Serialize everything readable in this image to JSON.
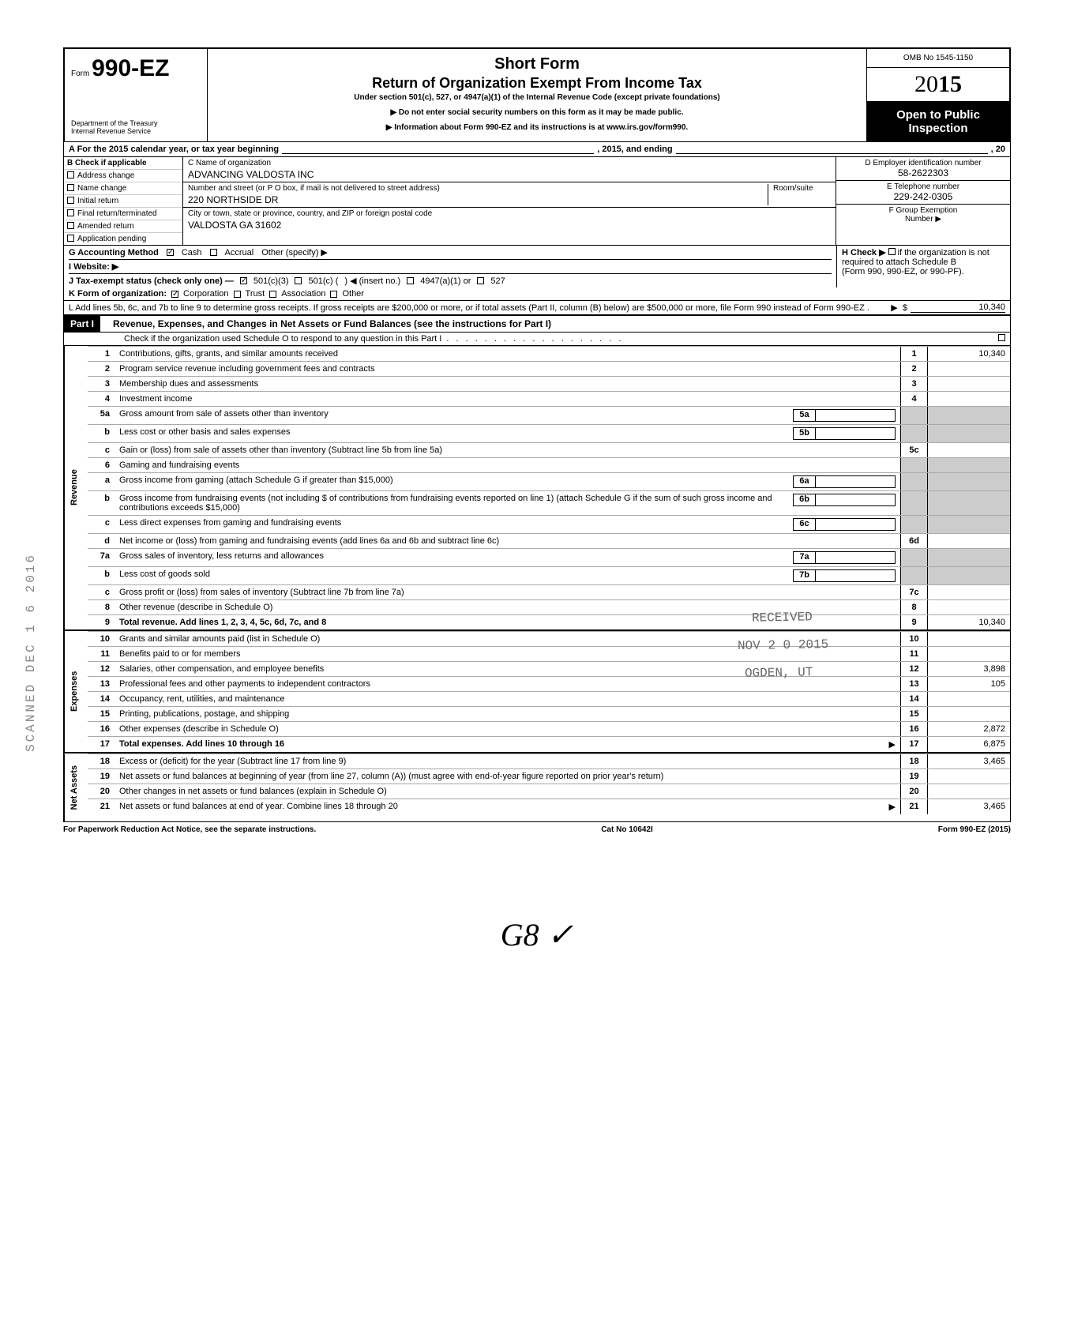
{
  "header": {
    "form_label": "Form",
    "form_number": "990-EZ",
    "dept1": "Department of the Treasury",
    "dept2": "Internal Revenue Service",
    "title1": "Short Form",
    "title2": "Return of Organization Exempt From Income Tax",
    "under": "Under section 501(c), 527, or 4947(a)(1) of the Internal Revenue Code (except private foundations)",
    "note1": "▶ Do not enter social security numbers on this form as it may be made public.",
    "note2": "▶ Information about Form 990-EZ and its instructions is at www.irs.gov/form990.",
    "omb": "OMB No  1545-1150",
    "year_prefix": "20",
    "year_bold": "15",
    "open1": "Open to Public",
    "open2": "Inspection"
  },
  "rowA": {
    "label": "A  For the 2015 calendar year, or tax year beginning",
    "mid": ", 2015, and ending",
    "end": ", 20"
  },
  "sectionB": {
    "hdr": "B  Check if applicable",
    "opts": [
      "Address change",
      "Name change",
      "Initial return",
      "Final return/terminated",
      "Amended return",
      "Application pending"
    ]
  },
  "sectionC": {
    "c_label": "C  Name of organization",
    "c_val": "ADVANCING VALDOSTA INC",
    "street_label": "Number and street (or P O  box, if mail is not delivered to street address)",
    "room_label": "Room/suite",
    "street_val": "220 NORTHSIDE DR",
    "city_label": "City or town, state or province, country, and ZIP or foreign postal code",
    "city_val": "VALDOSTA GA 31602"
  },
  "sectionDEF": {
    "d_label": "D Employer identification number",
    "d_val": "58-2622303",
    "e_label": "E Telephone number",
    "e_val": "229-242-0305",
    "f_label": "F  Group Exemption",
    "f_label2": "Number ▶"
  },
  "rowG": {
    "g": "G  Accounting Method",
    "cash": "Cash",
    "accrual": "Accrual",
    "other": "Other (specify) ▶",
    "h1": "H  Check ▶",
    "h2": "if the organization is not",
    "h3": "required to attach Schedule B",
    "h4": "(Form 990, 990-EZ, or 990-PF)."
  },
  "rowI": {
    "label": "I   Website: ▶"
  },
  "rowJ": {
    "label": "J  Tax-exempt status (check only one) —",
    "a": "501(c)(3)",
    "b": "501(c) (",
    "b2": ")  ◀ (insert no.)",
    "c": "4947(a)(1) or",
    "d": "527"
  },
  "rowK": {
    "label": "K  Form of organization:",
    "a": "Corporation",
    "b": "Trust",
    "c": "Association",
    "d": "Other"
  },
  "rowL": {
    "text": "L  Add lines 5b, 6c, and 7b to line 9 to determine gross receipts. If gross receipts are $200,000 or more, or if total assets (Part II, column (B) below) are $500,000 or more, file Form 990 instead of Form 990-EZ .",
    "amt": "10,340"
  },
  "part1": {
    "hdr": "Part I",
    "title": "Revenue, Expenses, and Changes in Net Assets or Fund Balances (see the instructions for Part I)",
    "check": "Check if the organization used Schedule O to respond to any question in this Part I"
  },
  "sections": {
    "revenue": "Revenue",
    "expenses": "Expenses",
    "netassets": "Net Assets"
  },
  "lines": [
    {
      "n": "1",
      "d": "Contributions, gifts, grants, and similar amounts received",
      "r": "1",
      "a": "10,340"
    },
    {
      "n": "2",
      "d": "Program service revenue including government fees and contracts",
      "r": "2",
      "a": ""
    },
    {
      "n": "3",
      "d": "Membership dues and assessments",
      "r": "3",
      "a": ""
    },
    {
      "n": "4",
      "d": "Investment income",
      "r": "4",
      "a": ""
    },
    {
      "n": "5a",
      "d": "Gross amount from sale of assets other than inventory",
      "inner": "5a"
    },
    {
      "n": "b",
      "d": "Less  cost or other basis and sales expenses",
      "inner": "5b"
    },
    {
      "n": "c",
      "d": "Gain or (loss) from sale of assets other than inventory (Subtract line 5b from line 5a)",
      "r": "5c",
      "a": ""
    },
    {
      "n": "6",
      "d": "Gaming and fundraising events"
    },
    {
      "n": "a",
      "d": "Gross income from gaming (attach Schedule G if greater than $15,000)",
      "inner": "6a"
    },
    {
      "n": "b",
      "d": "Gross income from fundraising events (not including  $                    of contributions from fundraising events reported on line 1) (attach Schedule G if the sum of such gross income and contributions exceeds $15,000)",
      "inner": "6b"
    },
    {
      "n": "c",
      "d": "Less  direct expenses from gaming and fundraising events",
      "inner": "6c"
    },
    {
      "n": "d",
      "d": "Net income or (loss) from gaming and fundraising events (add lines 6a and 6b and subtract line 6c)",
      "r": "6d",
      "a": ""
    },
    {
      "n": "7a",
      "d": "Gross sales of inventory, less returns and allowances",
      "inner": "7a"
    },
    {
      "n": "b",
      "d": "Less  cost of goods sold",
      "inner": "7b"
    },
    {
      "n": "c",
      "d": "Gross profit or (loss) from sales of inventory (Subtract line 7b from line 7a)",
      "r": "7c",
      "a": ""
    },
    {
      "n": "8",
      "d": "Other revenue (describe in Schedule O)",
      "r": "8",
      "a": ""
    },
    {
      "n": "9",
      "d": "Total revenue. Add lines 1, 2, 3, 4, 5c, 6d, 7c, and 8",
      "r": "9",
      "a": "10,340",
      "bold": true
    },
    {
      "n": "10",
      "d": "Grants and similar amounts paid (list in Schedule O)",
      "r": "10",
      "a": ""
    },
    {
      "n": "11",
      "d": "Benefits paid to or for members",
      "r": "11",
      "a": ""
    },
    {
      "n": "12",
      "d": "Salaries, other compensation, and employee benefits",
      "r": "12",
      "a": "3,898"
    },
    {
      "n": "13",
      "d": "Professional fees and other payments to independent contractors",
      "r": "13",
      "a": "105"
    },
    {
      "n": "14",
      "d": "Occupancy, rent, utilities, and maintenance",
      "r": "14",
      "a": ""
    },
    {
      "n": "15",
      "d": "Printing, publications, postage, and shipping",
      "r": "15",
      "a": ""
    },
    {
      "n": "16",
      "d": "Other expenses (describe in Schedule O)",
      "r": "16",
      "a": "2,872"
    },
    {
      "n": "17",
      "d": "Total expenses. Add lines 10 through 16",
      "r": "17",
      "a": "6,875",
      "bold": true,
      "arr": true
    },
    {
      "n": "18",
      "d": "Excess or (deficit) for the year (Subtract line 17 from line 9)",
      "r": "18",
      "a": "3,465"
    },
    {
      "n": "19",
      "d": "Net assets or fund balances at beginning of year (from line 27, column (A)) (must agree with end-of-year figure reported on prior year's return)",
      "r": "19",
      "a": ""
    },
    {
      "n": "20",
      "d": "Other changes in net assets or fund balances (explain in Schedule O)",
      "r": "20",
      "a": ""
    },
    {
      "n": "21",
      "d": "Net assets or fund balances at end of year. Combine lines 18 through 20",
      "r": "21",
      "a": "3,465",
      "arr": true
    }
  ],
  "footer": {
    "left": "For Paperwork Reduction Act Notice, see the separate instructions.",
    "mid": "Cat  No  10642I",
    "right": "Form 990-EZ (2015)"
  },
  "stamps": {
    "received": "RECEIVED",
    "date": "NOV  2 0  2015",
    "ogden": "OGDEN, UT",
    "side": "SCANNED DEC 1 6 2016",
    "sig": "G8  ✓"
  }
}
